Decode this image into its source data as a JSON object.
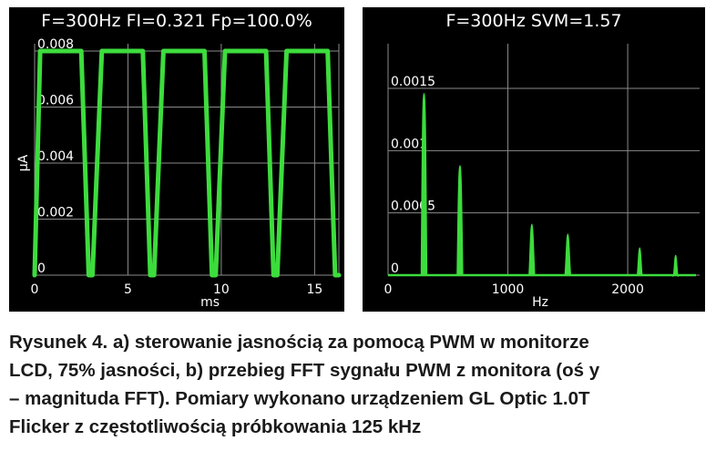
{
  "chart_data": [
    {
      "type": "line",
      "title": "F=300Hz FI=0.321 Fp=100.0%",
      "xlabel": "ms",
      "ylabel": "µA",
      "xlim": [
        0,
        16.3
      ],
      "ylim": [
        0,
        0.008
      ],
      "xticks": [
        "0",
        "5",
        "10",
        "15"
      ],
      "yticks": [
        "0",
        "0.002",
        "0.004",
        "0.006",
        "0.008"
      ],
      "grid": true,
      "color": "#3ddc3d",
      "x": [
        0,
        0.3,
        0.5,
        2.3,
        2.5,
        2.9,
        3.1,
        3.6,
        3.8,
        5.6,
        5.8,
        6.2,
        6.4,
        6.9,
        7.1,
        8.9,
        9.1,
        9.5,
        9.7,
        10.2,
        10.4,
        12.2,
        12.4,
        12.8,
        13.0,
        13.5,
        13.7,
        15.5,
        15.7,
        16.1,
        16.3
      ],
      "y": [
        0,
        0.008,
        0.008,
        0.008,
        0.008,
        0,
        0,
        0.008,
        0.008,
        0.008,
        0.008,
        0,
        0,
        0.008,
        0.008,
        0.008,
        0.008,
        0,
        0,
        0.008,
        0.008,
        0.008,
        0.008,
        0,
        0,
        0.008,
        0.008,
        0.008,
        0.008,
        0,
        0
      ]
    },
    {
      "type": "bar",
      "title": "F=300Hz SVM=1.57",
      "xlabel": "Hz",
      "ylabel": "",
      "xlim": [
        0,
        2600
      ],
      "ylim": [
        0,
        0.0018
      ],
      "xticks": [
        "0",
        "1000",
        "2000"
      ],
      "yticks": [
        "0",
        "0.0005",
        "0.001",
        "0.0015"
      ],
      "grid": true,
      "color": "#3ddc3d",
      "x": [
        300,
        600,
        1200,
        1500,
        2100,
        2400
      ],
      "values": [
        0.00146,
        0.00088,
        0.00041,
        0.00033,
        0.00022,
        0.00016
      ]
    }
  ],
  "caption": {
    "lines": [
      "Rysunek 4. a) sterowanie jasnością za pomocą PWM w monitorze",
      "LCD, 75% jasności, b) przebieg FFT sygnału PWM z monitora (oś y",
      "– magnituda FFT). Pomiary wykonano urządzeniem GL Optic 1.0T",
      "Flicker z częstotliwością próbkowania 125 kHz"
    ]
  }
}
